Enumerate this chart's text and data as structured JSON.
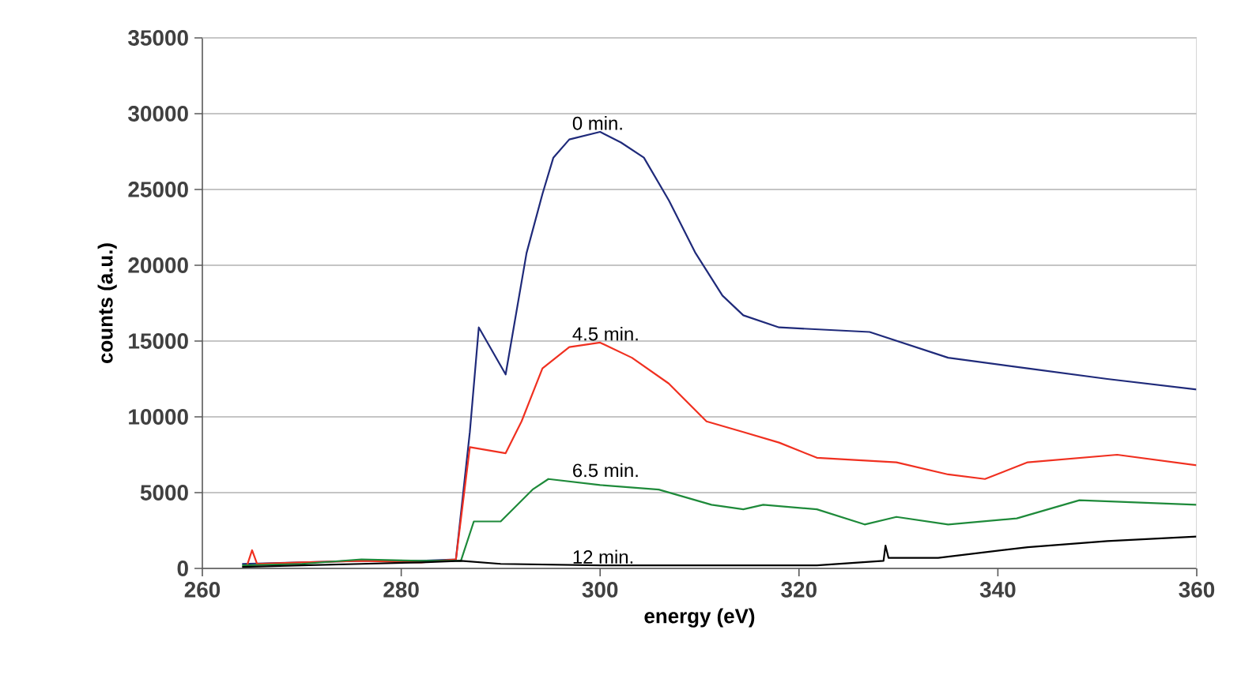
{
  "chart_data": {
    "type": "line",
    "xlabel": "energy (eV)",
    "ylabel": "counts (a.u.)",
    "xlim": [
      260,
      360
    ],
    "ylim": [
      0,
      35000
    ],
    "xticks": [
      260,
      280,
      300,
      320,
      340,
      360
    ],
    "yticks": [
      0,
      5000,
      10000,
      15000,
      20000,
      25000,
      30000,
      35000
    ],
    "grid": "y",
    "marker": "none",
    "line_style": "solid",
    "series": [
      {
        "name": "0 min.",
        "color": "#1f2a7a",
        "x": [
          264,
          270,
          276,
          282,
          285.5,
          286.9,
          287.8,
          290.5,
          292.6,
          294.2,
          295.3,
          296.9,
          300,
          302.1,
          304.4,
          306.9,
          309.6,
          312.3,
          314.4,
          318,
          327.1,
          335,
          343,
          351,
          360
        ],
        "values": [
          300,
          400,
          500,
          500,
          600,
          9000,
          15900,
          12800,
          20800,
          24700,
          27100,
          28300,
          28800,
          28100,
          27100,
          24300,
          20800,
          18000,
          16700,
          15900,
          15600,
          13900,
          13200,
          12500,
          11800
        ]
      },
      {
        "name": "4.5 min.",
        "color": "#f03020",
        "x": [
          264.5,
          265,
          265.5,
          270,
          276,
          282,
          285.5,
          286.9,
          290.5,
          292.1,
          294.2,
          296.9,
          300,
          303.2,
          306.9,
          310.7,
          314.4,
          318,
          321.8,
          329.8,
          335,
          338.7,
          343,
          352,
          360
        ],
        "values": [
          200,
          1200,
          300,
          400,
          500,
          400,
          600,
          8000,
          7600,
          9700,
          13200,
          14600,
          14900,
          13900,
          12200,
          9700,
          9000,
          8300,
          7300,
          7000,
          6200,
          5900,
          7000,
          7500,
          6800
        ]
      },
      {
        "name": "6.5 min.",
        "color": "#1e8a3a",
        "x": [
          264,
          270,
          276,
          282,
          286,
          287.3,
          290,
          293.2,
          294.8,
          300,
          305.9,
          311.2,
          314.4,
          316.4,
          321.8,
          326.6,
          329.8,
          335,
          341.9,
          348.2,
          360
        ],
        "values": [
          200,
          300,
          600,
          500,
          500,
          3100,
          3100,
          5200,
          5900,
          5500,
          5200,
          4200,
          3900,
          4200,
          3900,
          2900,
          3400,
          2900,
          3300,
          4500,
          4200
        ]
      },
      {
        "name": "12 min.",
        "color": "#000000",
        "x": [
          264,
          270,
          276,
          282,
          286,
          290,
          300,
          310,
          321.8,
          328.5,
          328.7,
          329,
          334,
          343,
          351,
          360
        ],
        "values": [
          100,
          200,
          300,
          400,
          500,
          300,
          200,
          200,
          200,
          500,
          1500,
          700,
          700,
          1400,
          1800,
          2100
        ]
      }
    ]
  }
}
